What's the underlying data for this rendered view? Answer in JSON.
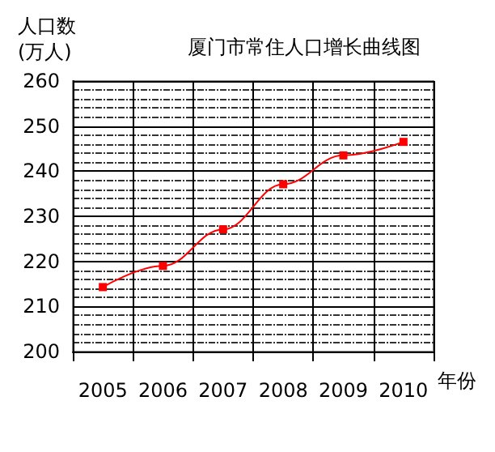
{
  "chart_data": {
    "type": "line",
    "title": "厦门市常住人口增长曲线图",
    "ylabel": "人口数\n(万人)",
    "xlabel": "年份",
    "categories": [
      "2005",
      "2006",
      "2007",
      "2008",
      "2009",
      "2010"
    ],
    "series": [
      {
        "color": "#ff0000",
        "values": [
          214.3,
          219,
          227.1,
          237.1,
          243.5,
          246.5
        ]
      }
    ],
    "ylim": [
      200,
      260
    ],
    "yticks": [
      200,
      210,
      220,
      230,
      240,
      250,
      260
    ],
    "grid": true,
    "marker": "square",
    "line_style": "solid"
  }
}
